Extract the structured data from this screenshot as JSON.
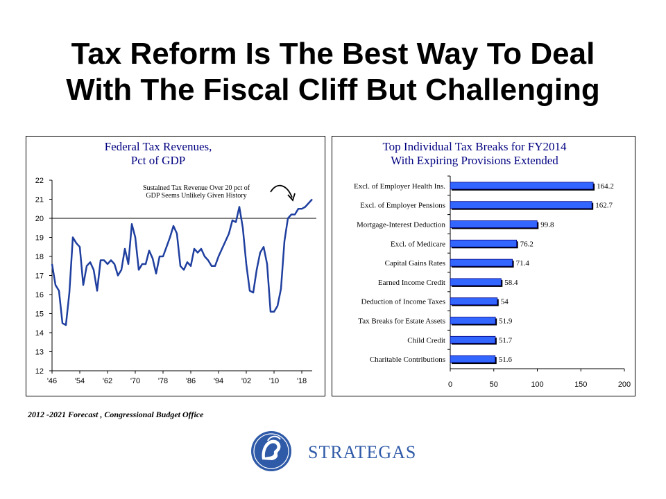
{
  "slide": {
    "title_line1": "Tax Reform Is The Best Way To Deal",
    "title_line2": "With The Fiscal Cliff But Challenging"
  },
  "source_note": "2012 -2021 Forecast , Congressional Budget Office",
  "logo": {
    "text": "STRATEGAS",
    "icon": "helmeted-head-seal-icon",
    "color": "#2f5aa8"
  },
  "chart_data": [
    {
      "type": "line",
      "title_lines": [
        "Federal Tax Revenues,",
        "Pct of GDP"
      ],
      "xlabel": "",
      "ylabel": "",
      "x_ticks": [
        "'46",
        "'54",
        "'62",
        "'70",
        "'78",
        "'86",
        "'94",
        "'02",
        "'10",
        "'18"
      ],
      "y_ticks": [
        12,
        13,
        14,
        15,
        16,
        17,
        18,
        19,
        20,
        21,
        22
      ],
      "xlim": [
        1946,
        2021
      ],
      "ylim": [
        12,
        22
      ],
      "reference_line": 20,
      "annotation": [
        "Sustained Tax Revenue Over 20 pct of",
        "GDP Seems Unlikely Given History"
      ],
      "grid": false,
      "line_color": "#1f3f9f",
      "series": [
        {
          "x": [
            1946,
            1947,
            1948,
            1949,
            1950,
            1951,
            1952,
            1953,
            1954,
            1955,
            1956,
            1957,
            1958,
            1959,
            1960,
            1961,
            1962,
            1963,
            1964,
            1965,
            1966,
            1967,
            1968,
            1969,
            1970,
            1971,
            1972,
            1973,
            1974,
            1975,
            1976,
            1977,
            1978,
            1979,
            1980,
            1981,
            1982,
            1983,
            1984,
            1985,
            1986,
            1987,
            1988,
            1989,
            1990,
            1991,
            1992,
            1993,
            1994,
            1995,
            1996,
            1997,
            1998,
            1999,
            2000,
            2001,
            2002,
            2003,
            2004,
            2005,
            2006,
            2007,
            2008,
            2009,
            2010,
            2011,
            2012,
            2013,
            2014,
            2015,
            2016,
            2017,
            2018,
            2019,
            2020,
            2021
          ],
          "values": [
            17.6,
            16.5,
            16.2,
            14.5,
            14.4,
            16.1,
            19.0,
            18.7,
            18.5,
            16.5,
            17.5,
            17.7,
            17.3,
            16.2,
            17.8,
            17.8,
            17.6,
            17.8,
            17.6,
            17.0,
            17.3,
            18.4,
            17.6,
            19.7,
            19.0,
            17.3,
            17.6,
            17.6,
            18.3,
            17.9,
            17.1,
            18.0,
            18.0,
            18.5,
            19.0,
            19.6,
            19.2,
            17.5,
            17.3,
            17.7,
            17.5,
            18.4,
            18.2,
            18.4,
            18.0,
            17.8,
            17.5,
            17.5,
            18.0,
            18.4,
            18.8,
            19.2,
            19.9,
            19.8,
            20.6,
            19.5,
            17.6,
            16.2,
            16.1,
            17.3,
            18.2,
            18.5,
            17.6,
            15.1,
            15.1,
            15.4,
            16.3,
            18.8,
            20.0,
            20.2,
            20.2,
            20.5,
            20.5,
            20.6,
            20.8,
            21.0
          ]
        }
      ]
    },
    {
      "type": "bar",
      "orientation": "horizontal",
      "title_lines": [
        "Top Individual Tax Breaks for FY2014",
        "With Expiring Provisions Extended"
      ],
      "categories": [
        "Excl. of Employer Health Ins.",
        "Excl. of Employer Pensions",
        "Mortgage-Interest Deduction",
        "Excl. of Medicare",
        "Capital Gains Rates",
        "Earned Income Credit",
        "Deduction of Income Taxes",
        "Tax Breaks for Estate Assets",
        "Child Credit",
        "Charitable Contributions"
      ],
      "values": [
        164.2,
        162.7,
        99.8,
        76.2,
        71.4,
        58.4,
        54,
        51.9,
        51.7,
        51.6
      ],
      "value_labels": [
        "164.2",
        "162.7",
        "99.8",
        "76.2",
        "71.4",
        "58.4",
        "54",
        "51.9",
        "51.7",
        "51.6"
      ],
      "x_ticks": [
        0,
        50,
        100,
        150,
        200
      ],
      "xlim": [
        0,
        200
      ],
      "grid": false,
      "bar_color": "#3366ff",
      "shadow_color": "#000000"
    }
  ]
}
